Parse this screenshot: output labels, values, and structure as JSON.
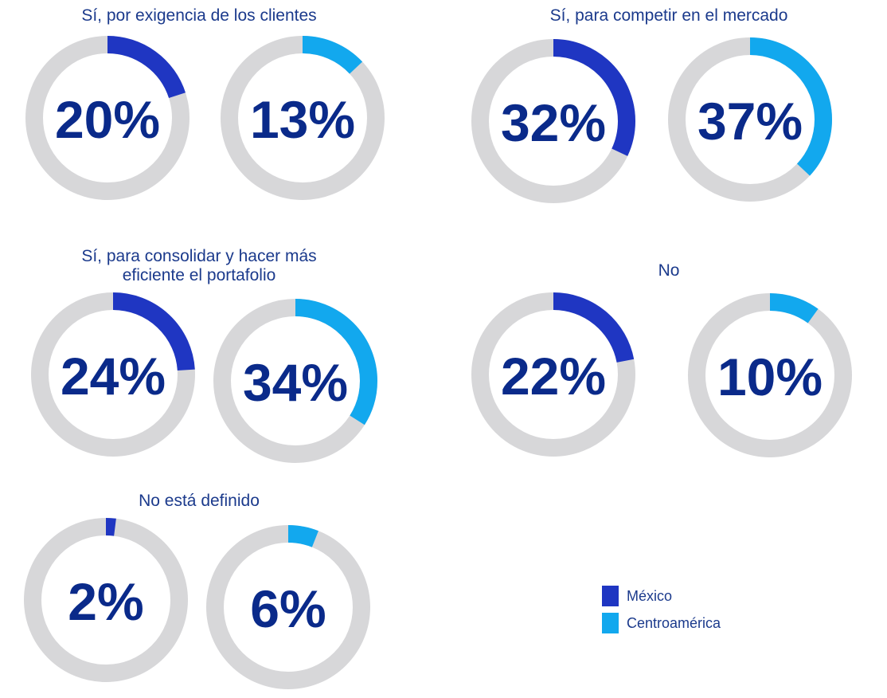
{
  "colors": {
    "mexico": "#1f36c2",
    "centroamerica": "#12a8ee",
    "track": "#d7d7d9",
    "text": "#0a2a8a"
  },
  "legend": {
    "mexico": "México",
    "centroamerica": "Centroamérica"
  },
  "chart_data": {
    "type": "donut",
    "series_names": [
      "México",
      "Centroamérica"
    ],
    "groups": [
      {
        "title": "Sí, por exigencia de los clientes",
        "values": [
          20,
          13
        ],
        "labels": [
          "20%",
          "13%"
        ]
      },
      {
        "title": "Sí, para competir en el mercado",
        "values": [
          32,
          37
        ],
        "labels": [
          "32%",
          "37%"
        ]
      },
      {
        "title": "Sí, para consolidar y hacer más eficiente el portafolio",
        "title_lines": [
          "Sí, para consolidar y hacer más",
          "eficiente el portafolio"
        ],
        "values": [
          24,
          34
        ],
        "labels": [
          "24%",
          "34%"
        ]
      },
      {
        "title": "No",
        "values": [
          22,
          10
        ],
        "labels": [
          "22%",
          "10%"
        ]
      },
      {
        "title": "No está definido",
        "values": [
          2,
          6
        ],
        "labels": [
          "2%",
          "6%"
        ]
      }
    ]
  }
}
